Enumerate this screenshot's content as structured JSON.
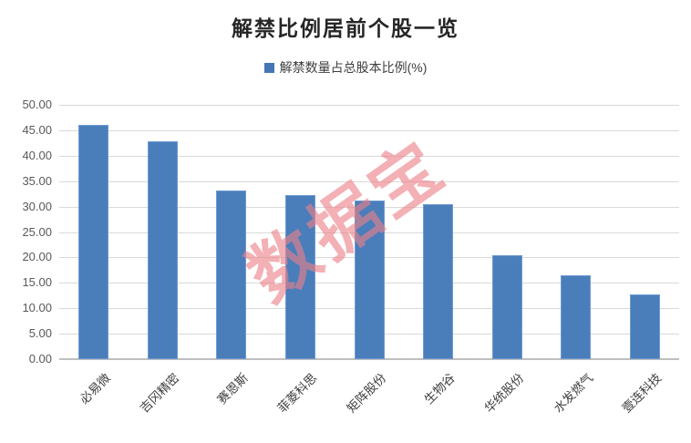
{
  "title": "解禁比例居前个股一览",
  "legend": {
    "label": "解禁数量占总股本比例(%)",
    "marker_color": "#4576b6"
  },
  "watermark": "数据宝",
  "colors": {
    "bar": "#4a7ebb",
    "gridline": "#d9d9d9",
    "axis_line": "#bfbfbf",
    "watermark_pink": "#eb8088"
  },
  "chart_data": {
    "type": "bar",
    "title": "解禁比例居前个股一览",
    "legend_entries": [
      "解禁数量占总股本比例(%)"
    ],
    "legend_position": "top",
    "categories": [
      "必易微",
      "吉冈精密",
      "赛恩斯",
      "菲菱科思",
      "矩阵股份",
      "生物谷",
      "华统股份",
      "水发燃气",
      "壹连科技"
    ],
    "values": [
      46.0,
      42.8,
      33.1,
      32.2,
      31.1,
      30.4,
      20.5,
      16.5,
      12.8
    ],
    "xlabel": "",
    "ylabel": "",
    "ylim": [
      0,
      50
    ],
    "ytick_step": 5,
    "ytick_labels": [
      "50.00",
      "45.00",
      "40.00",
      "35.00",
      "30.00",
      "25.00",
      "20.00",
      "15.00",
      "10.00",
      "5.00",
      "0.00"
    ],
    "grid": true,
    "x_tick_rotation_deg": 45
  }
}
